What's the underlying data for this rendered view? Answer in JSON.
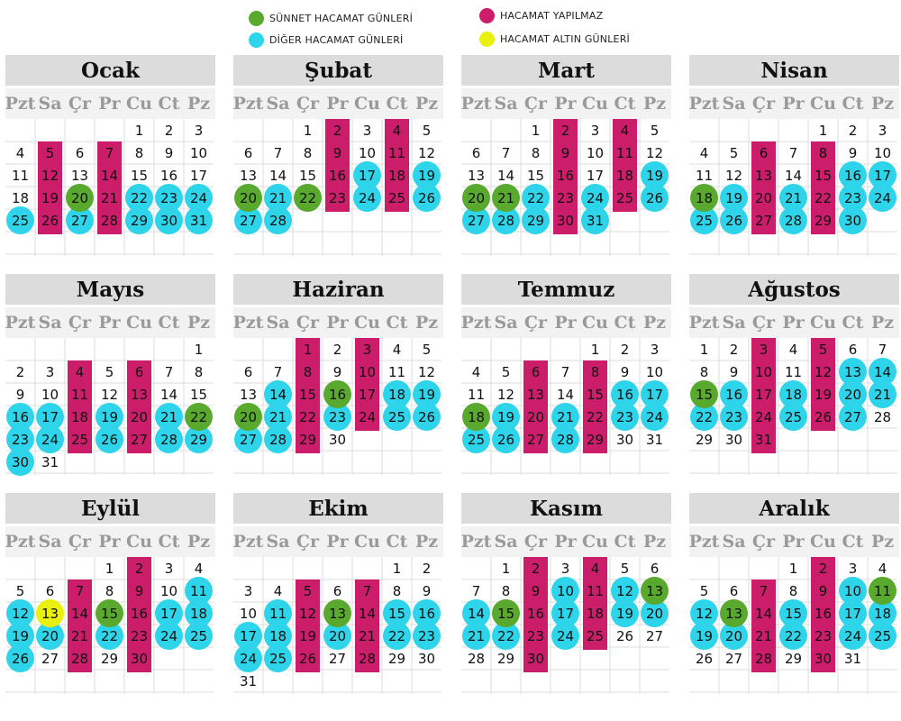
{
  "colors": {
    "sunnet": "#5aa92f",
    "diger": "#2ed5ea",
    "yapilmaz": "#cc1d6a",
    "altin": "#e8f00b",
    "header_bg": "#dcdcdc",
    "dow_bg": "#f2f2f2",
    "dow_text": "#9a9a9a"
  },
  "legend": {
    "sunnet": {
      "label": "SÜNNET HACAMAT GÜNLERİ",
      "color_key": "sunnet"
    },
    "diger": {
      "label": "DİĞER HACAMAT GÜNLERİ",
      "color_key": "diger"
    },
    "yapilmaz": {
      "label": "HACAMAT YAPILMAZ",
      "color_key": "yapilmaz"
    },
    "altin": {
      "label": "HACAMAT ALTIN GÜNLERİ",
      "color_key": "altin"
    }
  },
  "weekdays": [
    "Pzt",
    "Sa",
    "Çr",
    "Pr",
    "Cu",
    "Ct",
    "Pz"
  ],
  "months": [
    {
      "name": "Ocak",
      "start_col": 4,
      "days": 31,
      "forbidden": [
        5,
        7,
        12,
        14,
        19,
        21,
        26,
        28
      ],
      "sunnet": [
        20
      ],
      "diger": [
        22,
        23,
        24,
        25,
        27,
        29,
        30,
        31
      ],
      "altin": []
    },
    {
      "name": "Şubat",
      "start_col": 2,
      "days": 28,
      "forbidden": [
        2,
        4,
        9,
        11,
        16,
        18,
        23,
        25
      ],
      "sunnet": [
        20,
        22
      ],
      "diger": [
        17,
        19,
        21,
        24,
        26,
        27,
        28
      ],
      "altin": []
    },
    {
      "name": "Mart",
      "start_col": 2,
      "days": 31,
      "forbidden": [
        2,
        4,
        9,
        11,
        16,
        18,
        23,
        25,
        30
      ],
      "sunnet": [
        20,
        21
      ],
      "diger": [
        19,
        22,
        24,
        26,
        27,
        28,
        29,
        31
      ],
      "altin": []
    },
    {
      "name": "Nisan",
      "start_col": 4,
      "days": 30,
      "forbidden": [
        6,
        8,
        13,
        15,
        20,
        22,
        27,
        29
      ],
      "sunnet": [
        18
      ],
      "diger": [
        16,
        17,
        19,
        21,
        23,
        24,
        25,
        26,
        28,
        30
      ],
      "altin": []
    },
    {
      "name": "Mayıs",
      "start_col": 6,
      "days": 31,
      "forbidden": [
        4,
        6,
        11,
        13,
        18,
        20,
        25,
        27
      ],
      "sunnet": [
        22
      ],
      "diger": [
        16,
        17,
        19,
        21,
        23,
        24,
        26,
        28,
        29,
        30
      ],
      "altin": []
    },
    {
      "name": "Haziran",
      "start_col": 2,
      "days": 30,
      "forbidden": [
        1,
        3,
        8,
        10,
        15,
        17,
        22,
        24,
        29
      ],
      "sunnet": [
        16,
        20
      ],
      "diger": [
        14,
        18,
        19,
        21,
        23,
        25,
        26,
        27,
        28
      ],
      "altin": []
    },
    {
      "name": "Temmuz",
      "start_col": 4,
      "days": 31,
      "forbidden": [
        6,
        8,
        13,
        15,
        20,
        22,
        27,
        29
      ],
      "sunnet": [
        18
      ],
      "diger": [
        16,
        17,
        19,
        21,
        23,
        24,
        25,
        26,
        28
      ],
      "altin": []
    },
    {
      "name": "Ağustos",
      "start_col": 0,
      "days": 31,
      "forbidden": [
        3,
        5,
        10,
        12,
        17,
        19,
        24,
        26,
        31
      ],
      "sunnet": [
        15
      ],
      "diger": [
        13,
        14,
        16,
        18,
        20,
        21,
        22,
        23,
        25,
        27
      ],
      "altin": []
    },
    {
      "name": "Eylül",
      "start_col": 3,
      "days": 30,
      "forbidden": [
        2,
        7,
        9,
        14,
        16,
        21,
        23,
        28,
        30
      ],
      "sunnet": [
        15
      ],
      "diger": [
        11,
        12,
        17,
        18,
        19,
        20,
        22,
        24,
        25,
        26
      ],
      "altin": [
        13
      ]
    },
    {
      "name": "Ekim",
      "start_col": 5,
      "days": 31,
      "forbidden": [
        5,
        7,
        12,
        14,
        19,
        21,
        26,
        28
      ],
      "sunnet": [
        13
      ],
      "diger": [
        11,
        15,
        16,
        17,
        18,
        20,
        22,
        23,
        24,
        25
      ],
      "altin": []
    },
    {
      "name": "Kasım",
      "start_col": 1,
      "days": 30,
      "forbidden": [
        2,
        4,
        9,
        11,
        16,
        18,
        23,
        25,
        30
      ],
      "sunnet": [
        13,
        15
      ],
      "diger": [
        10,
        12,
        14,
        17,
        19,
        20,
        21,
        22,
        24
      ],
      "altin": []
    },
    {
      "name": "Aralık",
      "start_col": 3,
      "days": 31,
      "forbidden": [
        2,
        7,
        9,
        14,
        16,
        21,
        23,
        28,
        30
      ],
      "sunnet": [
        11,
        13
      ],
      "diger": [
        10,
        12,
        15,
        17,
        18,
        19,
        20,
        22,
        24,
        25
      ],
      "altin": []
    }
  ]
}
